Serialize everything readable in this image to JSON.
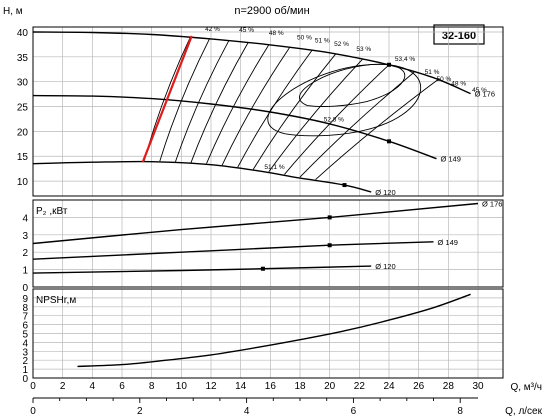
{
  "chart_data": {
    "type": "line",
    "title": "n=2900 об/мин",
    "model": "32-160",
    "x_axis": {
      "label": "Q, м³/ч",
      "range": [
        0,
        30
      ],
      "ticks": [
        0,
        2,
        4,
        6,
        8,
        10,
        12,
        14,
        16,
        18,
        20,
        22,
        24,
        26,
        28,
        30
      ]
    },
    "x2_axis": {
      "label": "Q, л/сек",
      "range": [
        0,
        8.333
      ],
      "ticks": [
        0,
        2,
        4,
        6,
        8
      ]
    },
    "panels": [
      {
        "id": "head",
        "ylabel": "H, м",
        "ylim": [
          7,
          41
        ],
        "yticks": [
          10,
          15,
          20,
          25,
          30,
          35,
          40
        ],
        "series": [
          {
            "name": "Ø 176",
            "x": [
              0,
              4,
              8,
              12,
              16,
              20,
              24,
              27,
              29.5
            ],
            "y": [
              40,
              39.9,
              39.5,
              38.6,
              37.4,
              35.8,
              33.4,
              30.8,
              27.6
            ]
          },
          {
            "name": "Ø 149",
            "x": [
              0,
              4,
              8,
              12,
              16,
              20,
              24,
              27.2
            ],
            "y": [
              27.2,
              27.1,
              26.6,
              25.5,
              23.9,
              21.5,
              18.0,
              14.5
            ]
          },
          {
            "name": "Ø 120",
            "x": [
              0,
              4,
              8,
              12,
              15.5,
              18,
              21,
              22.8
            ],
            "y": [
              13.5,
              13.8,
              13.9,
              13.3,
              11.9,
              10.6,
              9.2,
              7.8
            ]
          }
        ],
        "efficiency_labels": [
          "42 %",
          "45 %",
          "48 %",
          "50 %",
          "51 %",
          "52 %",
          "53 %",
          "53,4 %",
          "51 %",
          "50 %",
          "48 %",
          "45 %",
          "52,8 %",
          "51,1 %"
        ]
      },
      {
        "id": "power",
        "ylabel": "P₂ ,кВт",
        "ylim": [
          0,
          5
        ],
        "yticks": [
          0,
          1,
          2,
          3,
          4
        ],
        "series": [
          {
            "name": "Ø 176",
            "x": [
              0,
              10,
              20,
              30
            ],
            "y": [
              2.5,
              3.3,
              4.0,
              4.8
            ]
          },
          {
            "name": "Ø 149",
            "x": [
              0,
              10,
              20,
              27
            ],
            "y": [
              1.6,
              2.0,
              2.4,
              2.6
            ]
          },
          {
            "name": "Ø 120",
            "x": [
              0,
              10,
              15.5,
              22.8
            ],
            "y": [
              0.8,
              0.95,
              1.05,
              1.2
            ]
          }
        ]
      },
      {
        "id": "npsh",
        "ylabel": "NPSHr,м",
        "ylim": [
          0,
          10
        ],
        "yticks": [
          0,
          1,
          2,
          3,
          4,
          5,
          6,
          7,
          8,
          9
        ],
        "series": [
          {
            "name": "NPSHr",
            "x": [
              3,
              6,
              9,
              12,
              15,
              18,
              21,
              24,
              27,
              29.5
            ],
            "y": [
              1.3,
              1.5,
              2.0,
              2.6,
              3.4,
              4.3,
              5.3,
              6.5,
              7.9,
              9.4
            ]
          }
        ]
      }
    ]
  }
}
